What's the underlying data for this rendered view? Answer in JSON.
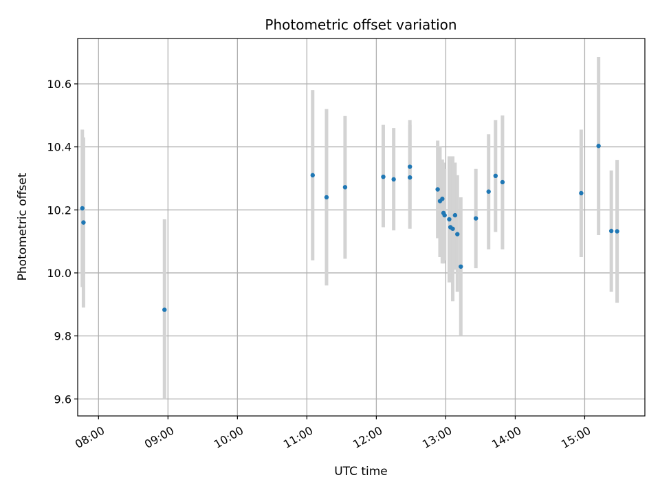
{
  "chart_data": {
    "type": "scatter",
    "title": "Photometric offset variation",
    "xlabel": "UTC time",
    "ylabel": "Photometric offset",
    "grid": true,
    "xlim": [
      "07:42",
      "15:52"
    ],
    "ylim": [
      9.546,
      10.744
    ],
    "xticks": [
      "08:00",
      "09:00",
      "10:00",
      "11:00",
      "12:00",
      "13:00",
      "14:00",
      "15:00"
    ],
    "yticks": [
      9.6,
      9.8,
      10.0,
      10.2,
      10.4,
      10.6
    ],
    "ytick_labels": [
      "9.6",
      "9.8",
      "10.0",
      "10.2",
      "10.4",
      "10.6"
    ],
    "marker_color": "#1f77b4",
    "errorbar_color": "#d3d3d3",
    "points": [
      {
        "x": "07:46",
        "y": 10.205,
        "low": 9.955,
        "high": 10.455
      },
      {
        "x": "07:47",
        "y": 10.16,
        "low": 9.89,
        "high": 10.43
      },
      {
        "x": "08:57",
        "y": 9.883,
        "low": 9.6,
        "high": 10.17
      },
      {
        "x": "11:05",
        "y": 10.31,
        "low": 10.04,
        "high": 10.58
      },
      {
        "x": "11:17",
        "y": 10.24,
        "low": 9.96,
        "high": 10.52
      },
      {
        "x": "11:33",
        "y": 10.272,
        "low": 10.045,
        "high": 10.498
      },
      {
        "x": "12:06",
        "y": 10.305,
        "low": 10.145,
        "high": 10.47
      },
      {
        "x": "12:15",
        "y": 10.297,
        "low": 10.135,
        "high": 10.46
      },
      {
        "x": "12:29",
        "y": 10.337,
        "low": 10.2,
        "high": 10.485
      },
      {
        "x": "12:29",
        "y": 10.303,
        "low": 10.14,
        "high": 10.47
      },
      {
        "x": "12:53",
        "y": 10.265,
        "low": 10.11,
        "high": 10.42
      },
      {
        "x": "12:55",
        "y": 10.228,
        "low": 10.05,
        "high": 10.4
      },
      {
        "x": "12:57",
        "y": 10.235,
        "low": 10.03,
        "high": 10.36
      },
      {
        "x": "12:58",
        "y": 10.19,
        "low": 10.03,
        "high": 10.35
      },
      {
        "x": "12:59",
        "y": 10.183,
        "low": 10.04,
        "high": 10.33
      },
      {
        "x": "13:03",
        "y": 10.17,
        "low": 9.97,
        "high": 10.37
      },
      {
        "x": "13:04",
        "y": 10.145,
        "low": 9.98,
        "high": 10.36
      },
      {
        "x": "13:06",
        "y": 10.14,
        "low": 9.91,
        "high": 10.37
      },
      {
        "x": "13:08",
        "y": 10.183,
        "low": 10.01,
        "high": 10.35
      },
      {
        "x": "13:10",
        "y": 10.123,
        "low": 9.94,
        "high": 10.31
      },
      {
        "x": "13:13",
        "y": 10.02,
        "low": 9.8,
        "high": 10.24
      },
      {
        "x": "13:26",
        "y": 10.173,
        "low": 10.015,
        "high": 10.33
      },
      {
        "x": "13:37",
        "y": 10.258,
        "low": 10.075,
        "high": 10.44
      },
      {
        "x": "13:43",
        "y": 10.308,
        "low": 10.13,
        "high": 10.485
      },
      {
        "x": "13:49",
        "y": 10.288,
        "low": 10.075,
        "high": 10.5
      },
      {
        "x": "14:57",
        "y": 10.253,
        "low": 10.05,
        "high": 10.455
      },
      {
        "x": "15:12",
        "y": 10.403,
        "low": 10.12,
        "high": 10.685
      },
      {
        "x": "15:23",
        "y": 10.133,
        "low": 9.94,
        "high": 10.325
      },
      {
        "x": "15:28",
        "y": 10.132,
        "low": 9.905,
        "high": 10.358
      }
    ]
  }
}
